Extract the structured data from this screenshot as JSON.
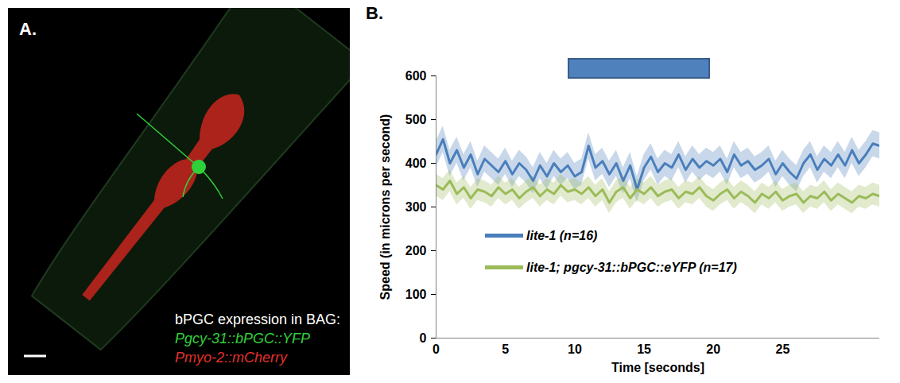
{
  "panel_a": {
    "label": "A.",
    "caption": "bPGC expression in BAG:",
    "markers": [
      {
        "text": "Pgcy-31::bPGC::YFP",
        "color": "#2fd13a"
      },
      {
        "text": "Pmyo-2::mCherry",
        "color": "#e0302a"
      }
    ]
  },
  "chart_data": {
    "type": "line",
    "panel_label": "B.",
    "x_label": "Time [seconds]",
    "y_label": "Speed (in microns per second)",
    "xlim": [
      0,
      32
    ],
    "xticks": [
      0,
      5,
      10,
      15,
      20,
      25
    ],
    "ylim": [
      0,
      600
    ],
    "yticks": [
      0,
      100,
      200,
      300,
      400,
      500,
      600
    ],
    "legend": "bottom",
    "stimulus": {
      "x": [
        9.5,
        19.8
      ],
      "color": "#4f81bd"
    },
    "x": [
      0,
      0.5,
      1,
      1.5,
      2,
      2.5,
      3,
      3.5,
      4,
      4.5,
      5,
      5.5,
      6,
      6.5,
      7,
      7.5,
      8,
      8.5,
      9,
      9.5,
      10,
      10.5,
      11,
      11.5,
      12,
      12.5,
      13,
      13.5,
      14,
      14.5,
      15,
      15.5,
      16,
      16.5,
      17,
      17.5,
      18,
      18.5,
      19,
      19.5,
      20,
      20.5,
      21,
      21.5,
      22,
      22.5,
      23,
      23.5,
      24,
      24.5,
      25,
      25.5,
      26,
      26.5,
      27,
      27.5,
      28,
      28.5,
      29,
      29.5,
      30,
      30.5,
      31,
      31.5,
      32
    ],
    "series": [
      {
        "name": "lite-1 (n=16)",
        "color": "#4a7ebb",
        "error": 30,
        "values": [
          420,
          455,
          400,
          430,
          390,
          420,
          375,
          410,
          395,
          380,
          405,
          375,
          400,
          385,
          360,
          395,
          370,
          400,
          380,
          395,
          370,
          380,
          440,
          390,
          405,
          375,
          400,
          360,
          395,
          340,
          390,
          415,
          380,
          400,
          390,
          420,
          385,
          410,
          390,
          405,
          395,
          410,
          380,
          420,
          395,
          405,
          385,
          395,
          410,
          375,
          400,
          380,
          365,
          400,
          420,
          385,
          410,
          395,
          420,
          395,
          430,
          400,
          420,
          445,
          440
        ]
      },
      {
        "name": "lite-1; pgcy-31::bPGC::eYFP (n=17)",
        "color": "#9bbb59",
        "error": 25,
        "values": [
          350,
          340,
          360,
          330,
          345,
          320,
          340,
          335,
          325,
          345,
          330,
          340,
          320,
          335,
          345,
          325,
          340,
          330,
          350,
          335,
          340,
          330,
          345,
          325,
          340,
          310,
          335,
          345,
          320,
          340,
          330,
          345,
          325,
          335,
          340,
          320,
          335,
          330,
          345,
          325,
          315,
          330,
          340,
          320,
          335,
          325,
          310,
          330,
          320,
          335,
          315,
          325,
          330,
          310,
          325,
          320,
          335,
          315,
          330,
          320,
          310,
          325,
          320,
          330,
          325
        ]
      }
    ]
  }
}
